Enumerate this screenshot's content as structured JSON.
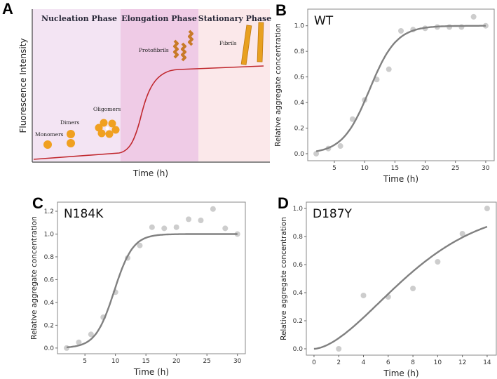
{
  "panel_a": {
    "letter": "A",
    "y_label": "Fluorescence Intensity",
    "x_label": "Time (h)",
    "phases": [
      "Nucleation Phase",
      "Elongation Phase",
      "Stationary Phase"
    ],
    "species": [
      "Monomers",
      "Dimers",
      "Oligomers",
      "Protofibrils",
      "Fibrils"
    ],
    "colors": {
      "curve": "#c0282e",
      "nucleation": "#f3e4f3",
      "elongation": "#efcbe6",
      "stationary": "#fbe8ea",
      "particle": "#f0a020",
      "protofibril": "#c87a28"
    }
  },
  "chart_data": [
    {
      "letter": "B",
      "type": "scatter",
      "title": "WT",
      "xlabel": "Time (h)",
      "ylabel": "Relative aggregate concentration",
      "xlim": [
        0.6,
        31.4
      ],
      "ylim": [
        -0.055,
        1.13
      ],
      "xticks": [
        5,
        10,
        15,
        20,
        25,
        30
      ],
      "yticks": [
        0.0,
        0.2,
        0.4,
        0.6,
        0.8,
        1.0
      ],
      "x": [
        2,
        4,
        6,
        8,
        10,
        12,
        14,
        16,
        18,
        20,
        22,
        24,
        26,
        28,
        30
      ],
      "y": [
        0.0,
        0.04,
        0.06,
        0.27,
        0.42,
        0.58,
        0.66,
        0.96,
        0.97,
        0.98,
        0.99,
        0.99,
        0.99,
        1.07,
        1.0
      ],
      "fit": {
        "model": "logistic",
        "k": 0.45,
        "x0": 10.8
      },
      "grid": false
    },
    {
      "letter": "C",
      "type": "scatter",
      "title": "N184K",
      "xlabel": "Time (h)",
      "ylabel": "Relative aggregate concentration",
      "xlim": [
        0.5,
        31.3
      ],
      "ylim": [
        -0.05,
        1.28
      ],
      "xticks": [
        5,
        10,
        15,
        20,
        25,
        30
      ],
      "yticks": [
        0.0,
        0.2,
        0.4,
        0.6,
        0.8,
        1.0,
        1.2
      ],
      "x": [
        2,
        4,
        6,
        8,
        10,
        12,
        14,
        16,
        18,
        20,
        22,
        24,
        26,
        28,
        30
      ],
      "y": [
        0.0,
        0.05,
        0.12,
        0.27,
        0.49,
        0.79,
        0.9,
        1.06,
        1.05,
        1.06,
        1.13,
        1.12,
        1.22,
        1.05,
        1.0
      ],
      "fit": {
        "model": "logistic",
        "k": 0.65,
        "x0": 9.8
      },
      "grid": false
    },
    {
      "letter": "D",
      "type": "scatter",
      "title": "D187Y",
      "xlabel": "Time (h)",
      "ylabel": "Relative aggregate concentration",
      "xlim": [
        -0.62,
        14.74
      ],
      "ylim": [
        -0.045,
        1.045
      ],
      "xticks": [
        0,
        2,
        4,
        6,
        8,
        10,
        12,
        14
      ],
      "yticks": [
        0.0,
        0.2,
        0.4,
        0.6,
        0.8,
        1.0
      ],
      "x": [
        2,
        4,
        6,
        8,
        10,
        12,
        14
      ],
      "y": [
        0.0,
        0.38,
        0.37,
        0.43,
        0.62,
        0.82,
        1.0
      ],
      "fit": {
        "model": "weibull",
        "a": 9.13,
        "b": 1.67
      },
      "grid": false
    }
  ]
}
